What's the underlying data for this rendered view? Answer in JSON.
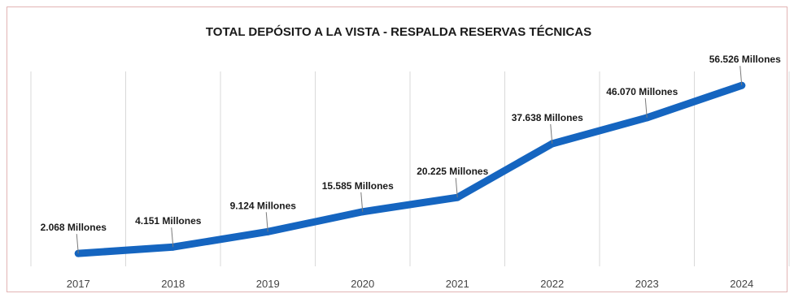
{
  "chart_data": {
    "type": "line",
    "title": "TOTAL DEPÓSITO A LA VISTA - RESPALDA RESERVAS TÉCNICAS",
    "xlabel": "",
    "ylabel": "",
    "categories": [
      "2017",
      "2018",
      "2019",
      "2020",
      "2021",
      "2022",
      "2023",
      "2024"
    ],
    "series": [
      {
        "values": [
          2068,
          4151,
          9124,
          15585,
          20225,
          37638,
          46070,
          56526
        ],
        "data_labels": [
          "2.068 Millones",
          "4.151 Millones",
          "9.124 Millones",
          "15.585 Millones",
          "20.225 Millones",
          "37.638 Millones",
          "46.070 Millones",
          "56.526 Millones"
        ]
      }
    ],
    "ylim": [
      0,
      60000
    ],
    "grid": "vertical",
    "legend": "none",
    "colors": {
      "line": "#1565c0",
      "grid": "#d9d9d9",
      "border": "#e2b4b4"
    }
  }
}
